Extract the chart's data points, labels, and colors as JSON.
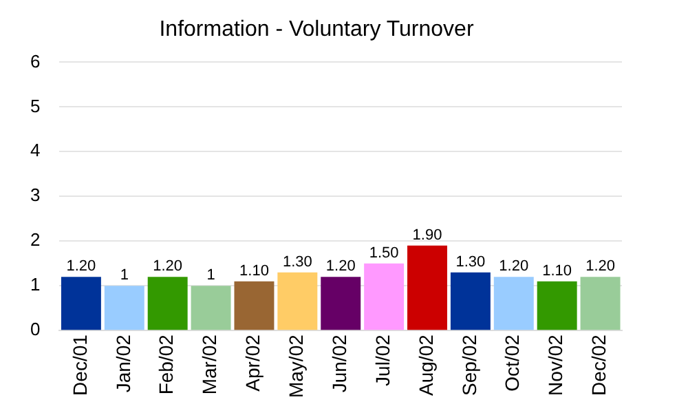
{
  "chart_data": {
    "type": "bar",
    "title": "Information - Voluntary Turnover",
    "categories": [
      "Dec/01",
      "Jan/02",
      "Feb/02",
      "Mar/02",
      "Apr/02",
      "May/02",
      "Jun/02",
      "Jul/02",
      "Aug/02",
      "Sep/02",
      "Oct/02",
      "Nov/02",
      "Dec/02"
    ],
    "values": [
      1.2,
      1,
      1.2,
      1,
      1.1,
      1.3,
      1.2,
      1.5,
      1.9,
      1.3,
      1.2,
      1.1,
      1.2
    ],
    "colors": [
      "#003399",
      "#99ccff",
      "#339900",
      "#99cc99",
      "#996633",
      "#ffcc66",
      "#660066",
      "#ff99ff",
      "#cc0000",
      "#003399",
      "#99ccff",
      "#339900",
      "#99cc99"
    ],
    "value_labels": [
      "1.20",
      "1",
      "1.20",
      "1",
      "1.10",
      "1.30",
      "1.20",
      "1.50",
      "1.90",
      "1.30",
      "1.20",
      "1.10",
      "1.20"
    ],
    "ylim": [
      0,
      6
    ],
    "yticks": [
      0,
      1,
      2,
      3,
      4,
      5,
      6
    ],
    "grid": "y",
    "legend": false
  }
}
